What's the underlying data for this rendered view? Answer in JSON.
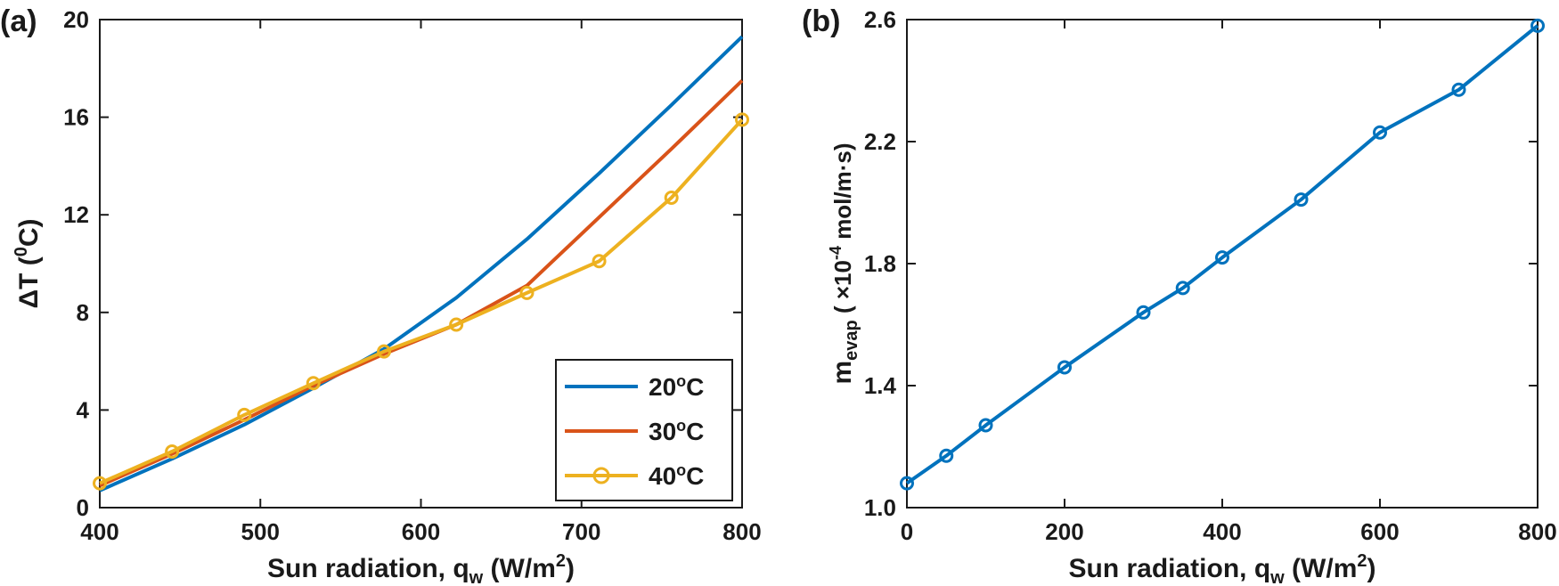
{
  "chart_data": [
    {
      "type": "line",
      "panel_label": "(a)",
      "xlabel": {
        "main": "Sun radiation, q",
        "sub": "w",
        "unit_pre": " (W/m",
        "unit_sup": "2",
        "unit_post": ")"
      },
      "ylabel": {
        "main": "ΔT (",
        "sup": "0",
        "post": "C)"
      },
      "xlim": [
        400,
        800
      ],
      "ylim": [
        0,
        20
      ],
      "xticks": [
        400,
        500,
        600,
        700,
        800
      ],
      "yticks": [
        0,
        4,
        8,
        12,
        16,
        20
      ],
      "legend_position": "bottom-right",
      "series": [
        {
          "name": "20",
          "name_sup": "o",
          "name_post": "C",
          "color": "#0072BD",
          "marker": "none",
          "x": [
            400,
            445,
            490,
            533,
            577,
            622,
            666,
            711,
            756,
            800
          ],
          "y": [
            0.7,
            2.0,
            3.4,
            4.9,
            6.5,
            8.6,
            11.0,
            13.7,
            16.5,
            19.3
          ]
        },
        {
          "name": "30",
          "name_sup": "o",
          "name_post": "C",
          "color": "#D95319",
          "marker": "none",
          "x": [
            400,
            445,
            490,
            533,
            577,
            622,
            666,
            711,
            756,
            800
          ],
          "y": [
            0.9,
            2.2,
            3.6,
            5.0,
            6.3,
            7.5,
            9.1,
            11.9,
            14.7,
            17.5
          ]
        },
        {
          "name": "40",
          "name_sup": "o",
          "name_post": "C",
          "color": "#EDB120",
          "marker": "circle",
          "x": [
            400,
            445,
            490,
            533,
            577,
            622,
            666,
            711,
            756,
            800
          ],
          "y": [
            1.0,
            2.3,
            3.8,
            5.1,
            6.4,
            7.5,
            8.8,
            10.1,
            12.7,
            15.9
          ]
        }
      ]
    },
    {
      "type": "line",
      "panel_label": "(b)",
      "xlabel": {
        "main": "Sun radiation, q",
        "sub": "w",
        "unit_pre": " (W/m",
        "unit_sup": "2",
        "unit_post": ")"
      },
      "ylabel": {
        "main": "m",
        "sub": "evap",
        "rest_pre": " ( ×10",
        "sup": "-4",
        "rest_post": " mol/m·s)"
      },
      "xlim": [
        0,
        800
      ],
      "ylim": [
        1.0,
        2.6
      ],
      "xticks": [
        0,
        200,
        400,
        600,
        800
      ],
      "yticks": [
        1.0,
        1.4,
        1.8,
        2.2,
        2.6
      ],
      "series": [
        {
          "name": "m_evap",
          "color": "#0072BD",
          "marker": "circle",
          "x": [
            0,
            50,
            100,
            200,
            300,
            350,
            400,
            500,
            600,
            700,
            800
          ],
          "y": [
            1.08,
            1.17,
            1.27,
            1.46,
            1.64,
            1.72,
            1.82,
            2.01,
            2.23,
            2.37,
            2.58
          ]
        }
      ]
    }
  ]
}
